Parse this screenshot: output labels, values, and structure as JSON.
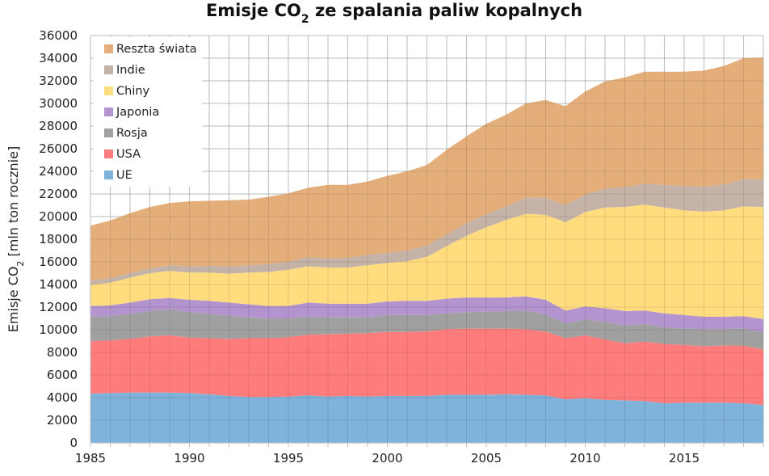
{
  "chart_data": {
    "type": "area",
    "stacked": true,
    "title": "Emisje CO2 ze spalania paliw kopalnych",
    "title_parts": {
      "before": "Emisje CO",
      "subscript": "2",
      "after": " ze spalania paliw kopalnych"
    },
    "xlabel": "",
    "ylabel": "Emisje CO2 [mln ton rocznie]",
    "ylabel_parts": {
      "before": "Emisje CO",
      "subscript": "2",
      "after": " [mln ton rocznie]"
    },
    "xlim": [
      1985,
      2019
    ],
    "ylim": [
      0,
      36000
    ],
    "grid": true,
    "legend_position": "top-left",
    "x_ticks": [
      1985,
      1990,
      1995,
      2000,
      2005,
      2010,
      2015
    ],
    "x_tick_labels": [
      "1985",
      "1990",
      "1995",
      "2000",
      "2005",
      "2010",
      "2015"
    ],
    "y_ticks": [
      0,
      2000,
      4000,
      6000,
      8000,
      10000,
      12000,
      14000,
      16000,
      18000,
      20000,
      22000,
      24000,
      26000,
      28000,
      30000,
      32000,
      34000,
      36000
    ],
    "y_tick_labels": [
      "0",
      "2000",
      "4000",
      "6000",
      "8000",
      "10000",
      "12000",
      "14000",
      "16000",
      "18000",
      "20000",
      "22000",
      "24000",
      "26000",
      "28000",
      "30000",
      "32000",
      "34000",
      "36000"
    ],
    "x": [
      1985,
      1986,
      1987,
      1988,
      1989,
      1990,
      1991,
      1992,
      1993,
      1994,
      1995,
      1996,
      1997,
      1998,
      1999,
      2000,
      2001,
      2002,
      2003,
      2004,
      2005,
      2006,
      2007,
      2008,
      2009,
      2010,
      2011,
      2012,
      2013,
      2014,
      2015,
      2016,
      2017,
      2018,
      2019
    ],
    "series": [
      {
        "name": "UE",
        "color": "#7fb3db",
        "values": [
          4350,
          4400,
          4450,
          4450,
          4450,
          4400,
          4300,
          4150,
          4050,
          4050,
          4100,
          4200,
          4100,
          4150,
          4100,
          4150,
          4150,
          4150,
          4250,
          4250,
          4250,
          4300,
          4250,
          4200,
          3850,
          3950,
          3800,
          3750,
          3700,
          3500,
          3550,
          3550,
          3550,
          3500,
          3350
        ]
      },
      {
        "name": "USA",
        "color": "#ff7c7c",
        "values": [
          4650,
          4650,
          4750,
          4950,
          5050,
          4900,
          4950,
          5050,
          5200,
          5200,
          5250,
          5350,
          5500,
          5500,
          5600,
          5650,
          5650,
          5700,
          5800,
          5850,
          5850,
          5800,
          5800,
          5650,
          5400,
          5550,
          5350,
          5050,
          5250,
          5250,
          5100,
          5000,
          5050,
          5100,
          4900
        ]
      },
      {
        "name": "Rosja",
        "color": "#a0a0a0",
        "values": [
          2150,
          2150,
          2200,
          2250,
          2300,
          2250,
          2150,
          2050,
          1850,
          1750,
          1650,
          1600,
          1500,
          1450,
          1400,
          1500,
          1500,
          1450,
          1400,
          1450,
          1500,
          1550,
          1650,
          1500,
          1300,
          1400,
          1550,
          1550,
          1550,
          1450,
          1450,
          1500,
          1450,
          1500,
          1550
        ]
      },
      {
        "name": "Japonia",
        "color": "#b394cf",
        "values": [
          950,
          950,
          1000,
          1050,
          1000,
          1100,
          1150,
          1150,
          1150,
          1100,
          1100,
          1250,
          1200,
          1200,
          1200,
          1200,
          1250,
          1250,
          1300,
          1300,
          1250,
          1200,
          1250,
          1300,
          1150,
          1150,
          1200,
          1300,
          1200,
          1250,
          1200,
          1100,
          1100,
          1100,
          1150
        ]
      },
      {
        "name": "Chiny",
        "color": "#ffdc7e",
        "values": [
          1850,
          2000,
          2200,
          2300,
          2400,
          2400,
          2500,
          2550,
          2800,
          3000,
          3200,
          3200,
          3200,
          3200,
          3400,
          3400,
          3500,
          3900,
          4650,
          5450,
          6200,
          6850,
          7300,
          7500,
          7800,
          8350,
          8900,
          9200,
          9350,
          9350,
          9250,
          9300,
          9400,
          9700,
          9900
        ]
      },
      {
        "name": "Indie",
        "color": "#c5b3a8",
        "values": [
          400,
          400,
          400,
          400,
          500,
          550,
          600,
          650,
          650,
          700,
          700,
          800,
          800,
          850,
          900,
          900,
          950,
          1000,
          1000,
          1100,
          1150,
          1200,
          1400,
          1500,
          1500,
          1550,
          1650,
          1750,
          1850,
          2000,
          2150,
          2200,
          2300,
          2400,
          2450
        ]
      },
      {
        "name": "Reszta świata",
        "color": "#e4ae7b",
        "values": [
          4850,
          5100,
          5300,
          5450,
          5500,
          5750,
          5750,
          5850,
          5800,
          5950,
          6050,
          6150,
          6500,
          6450,
          6500,
          6800,
          7000,
          7100,
          7500,
          7700,
          8000,
          8100,
          8350,
          8650,
          8750,
          9100,
          9500,
          9700,
          9900,
          10000,
          10100,
          10250,
          10450,
          10700,
          10750
        ]
      }
    ],
    "legend_order": [
      "Reszta świata",
      "Indie",
      "Chiny",
      "Japonia",
      "Rosja",
      "USA",
      "UE"
    ]
  }
}
